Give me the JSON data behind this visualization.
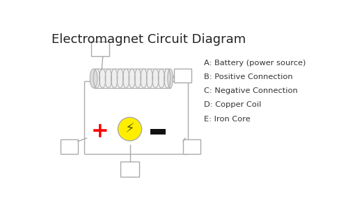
{
  "title": "Electromagnet Circuit Diagram",
  "title_fontsize": 13,
  "legend_items": [
    "A: Battery (power source)",
    "B: Positive Connection",
    "C: Negative Connection",
    "D: Copper Coil",
    "E: Iron Core"
  ],
  "bg_color": "#ffffff",
  "line_color": "#aaaaaa",
  "box_edge": "#aaaaaa",
  "plus_color": "#ff0000",
  "minus_color": "#111111",
  "bolt_fill": "#ffee00",
  "bolt_edge": "#aaaaaa"
}
